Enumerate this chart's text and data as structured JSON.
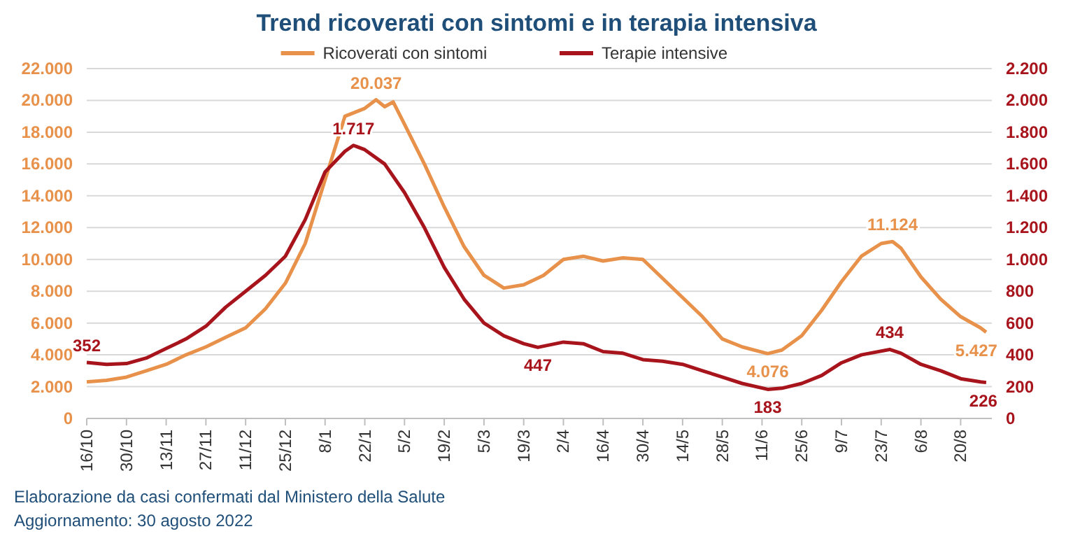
{
  "chart_data": {
    "type": "line",
    "title": "Trend ricoverati con sintomi e in terapia intensiva",
    "xlim": [
      "2021-10-16",
      "2022-08-31"
    ],
    "xticks": [
      {
        "value": "2021-10-16",
        "label": "16/10"
      },
      {
        "value": "2021-10-30",
        "label": "30/10"
      },
      {
        "value": "2021-11-13",
        "label": "13/11"
      },
      {
        "value": "2021-11-27",
        "label": "27/11"
      },
      {
        "value": "2021-12-11",
        "label": "11/12"
      },
      {
        "value": "2021-12-25",
        "label": "25/12"
      },
      {
        "value": "2022-01-08",
        "label": "8/1"
      },
      {
        "value": "2022-01-22",
        "label": "22/1"
      },
      {
        "value": "2022-02-05",
        "label": "5/2"
      },
      {
        "value": "2022-02-19",
        "label": "19/2"
      },
      {
        "value": "2022-03-05",
        "label": "5/3"
      },
      {
        "value": "2022-03-19",
        "label": "19/3"
      },
      {
        "value": "2022-04-02",
        "label": "2/4"
      },
      {
        "value": "2022-04-16",
        "label": "16/4"
      },
      {
        "value": "2022-04-30",
        "label": "30/4"
      },
      {
        "value": "2022-05-14",
        "label": "14/5"
      },
      {
        "value": "2022-05-28",
        "label": "28/5"
      },
      {
        "value": "2022-06-11",
        "label": "11/6"
      },
      {
        "value": "2022-06-25",
        "label": "25/6"
      },
      {
        "value": "2022-07-09",
        "label": "9/7"
      },
      {
        "value": "2022-07-23",
        "label": "23/7"
      },
      {
        "value": "2022-08-06",
        "label": "6/8"
      },
      {
        "value": "2022-08-20",
        "label": "20/8"
      }
    ],
    "ylim": [
      0,
      22000
    ],
    "yticks": [
      0,
      {
        "value": 2000,
        "label": "2.000"
      },
      {
        "value": 4000,
        "label": "4.000"
      },
      {
        "value": 6000,
        "label": "6.000"
      },
      {
        "value": 8000,
        "label": "8.000"
      },
      {
        "value": 10000,
        "label": "10.000"
      },
      {
        "value": 12000,
        "label": "12.000"
      },
      {
        "value": 14000,
        "label": "14.000"
      },
      {
        "value": 16000,
        "label": "16.000"
      },
      {
        "value": 18000,
        "label": "18.000"
      },
      {
        "value": 20000,
        "label": "20.000"
      },
      {
        "value": 22000,
        "label": "22.000"
      }
    ],
    "y2lim": [
      0,
      2200
    ],
    "y2ticks": [
      0,
      200,
      400,
      600,
      800,
      {
        "value": 1000,
        "label": "1.000"
      },
      {
        "value": 1200,
        "label": "1.200"
      },
      {
        "value": 1400,
        "label": "1.400"
      },
      {
        "value": 1600,
        "label": "1.600"
      },
      {
        "value": 1800,
        "label": "1.800"
      },
      {
        "value": 2000,
        "label": "2.000"
      },
      {
        "value": 2200,
        "label": "2.200"
      }
    ],
    "grid": "y",
    "legend": "top",
    "marker": "none",
    "line_style": "solid",
    "series": [
      {
        "name": "Ricoverati con sintomi",
        "color": "#e8914a",
        "x": [
          "2021-10-16",
          "2021-10-23",
          "2021-10-30",
          "2021-11-06",
          "2021-11-13",
          "2021-11-20",
          "2021-11-27",
          "2021-12-04",
          "2021-12-11",
          "2021-12-18",
          "2021-12-25",
          "2022-01-01",
          "2022-01-08",
          "2022-01-15",
          "2022-01-22",
          "2022-01-26",
          "2022-01-29",
          "2022-02-01",
          "2022-02-05",
          "2022-02-12",
          "2022-02-19",
          "2022-02-26",
          "2022-03-05",
          "2022-03-12",
          "2022-03-19",
          "2022-03-26",
          "2022-04-02",
          "2022-04-09",
          "2022-04-16",
          "2022-04-23",
          "2022-04-30",
          "2022-05-07",
          "2022-05-14",
          "2022-05-21",
          "2022-05-28",
          "2022-06-04",
          "2022-06-13",
          "2022-06-18",
          "2022-06-25",
          "2022-07-02",
          "2022-07-09",
          "2022-07-16",
          "2022-07-23",
          "2022-07-27",
          "2022-07-30",
          "2022-08-06",
          "2022-08-13",
          "2022-08-20",
          "2022-08-27",
          "2022-08-29"
        ],
        "values": [
          2300,
          2400,
          2600,
          3000,
          3400,
          4000,
          4500,
          5100,
          5700,
          6900,
          8500,
          11000,
          15000,
          19000,
          19500,
          20037,
          19600,
          19900,
          18500,
          16000,
          13300,
          10800,
          9000,
          8200,
          8400,
          9000,
          10000,
          10200,
          9900,
          10100,
          10000,
          8800,
          7600,
          6400,
          5000,
          4500,
          4076,
          4300,
          5200,
          6800,
          8600,
          10200,
          11000,
          11124,
          10700,
          8900,
          7500,
          6400,
          5700,
          5427
        ],
        "value_labels": [
          null,
          null,
          null,
          null,
          null,
          null,
          null,
          null,
          null,
          null,
          null,
          null,
          null,
          null,
          null,
          "20.037",
          null,
          null,
          null,
          null,
          null,
          null,
          null,
          null,
          null,
          null,
          null,
          null,
          null,
          null,
          null,
          null,
          null,
          null,
          null,
          null,
          "4.076",
          null,
          null,
          null,
          null,
          null,
          null,
          "11.124",
          null,
          null,
          null,
          null,
          null,
          "5.427"
        ]
      },
      {
        "name": "Terapie intensive",
        "color": "#a8141c",
        "axis": "y2",
        "x": [
          "2021-10-16",
          "2021-10-23",
          "2021-10-30",
          "2021-11-06",
          "2021-11-13",
          "2021-11-20",
          "2021-11-27",
          "2021-12-04",
          "2021-12-11",
          "2021-12-18",
          "2021-12-25",
          "2022-01-01",
          "2022-01-08",
          "2022-01-15",
          "2022-01-18",
          "2022-01-22",
          "2022-01-29",
          "2022-02-05",
          "2022-02-12",
          "2022-02-19",
          "2022-02-26",
          "2022-03-05",
          "2022-03-12",
          "2022-03-19",
          "2022-03-24",
          "2022-04-02",
          "2022-04-09",
          "2022-04-16",
          "2022-04-23",
          "2022-04-30",
          "2022-05-07",
          "2022-05-14",
          "2022-05-21",
          "2022-05-28",
          "2022-06-04",
          "2022-06-13",
          "2022-06-18",
          "2022-06-25",
          "2022-07-02",
          "2022-07-09",
          "2022-07-16",
          "2022-07-26",
          "2022-07-30",
          "2022-08-06",
          "2022-08-13",
          "2022-08-20",
          "2022-08-27",
          "2022-08-29"
        ],
        "values": [
          352,
          340,
          345,
          380,
          440,
          500,
          580,
          700,
          800,
          900,
          1020,
          1250,
          1550,
          1680,
          1717,
          1690,
          1600,
          1420,
          1200,
          950,
          750,
          600,
          520,
          470,
          447,
          480,
          470,
          420,
          410,
          370,
          360,
          340,
          300,
          260,
          220,
          183,
          190,
          220,
          270,
          350,
          400,
          434,
          410,
          340,
          300,
          250,
          230,
          226
        ],
        "value_labels": [
          "352",
          null,
          null,
          null,
          null,
          null,
          null,
          null,
          null,
          null,
          null,
          null,
          null,
          null,
          "1.717",
          null,
          null,
          null,
          null,
          null,
          null,
          null,
          null,
          null,
          "447",
          null,
          null,
          null,
          null,
          null,
          null,
          null,
          null,
          null,
          null,
          "183",
          null,
          null,
          null,
          null,
          null,
          "434",
          null,
          null,
          null,
          null,
          null,
          "226"
        ]
      }
    ],
    "annotations": [
      "Elaborazione da casi confermati dal Ministero della Salute",
      "Aggiornamento:  30 agosto 2022"
    ]
  }
}
